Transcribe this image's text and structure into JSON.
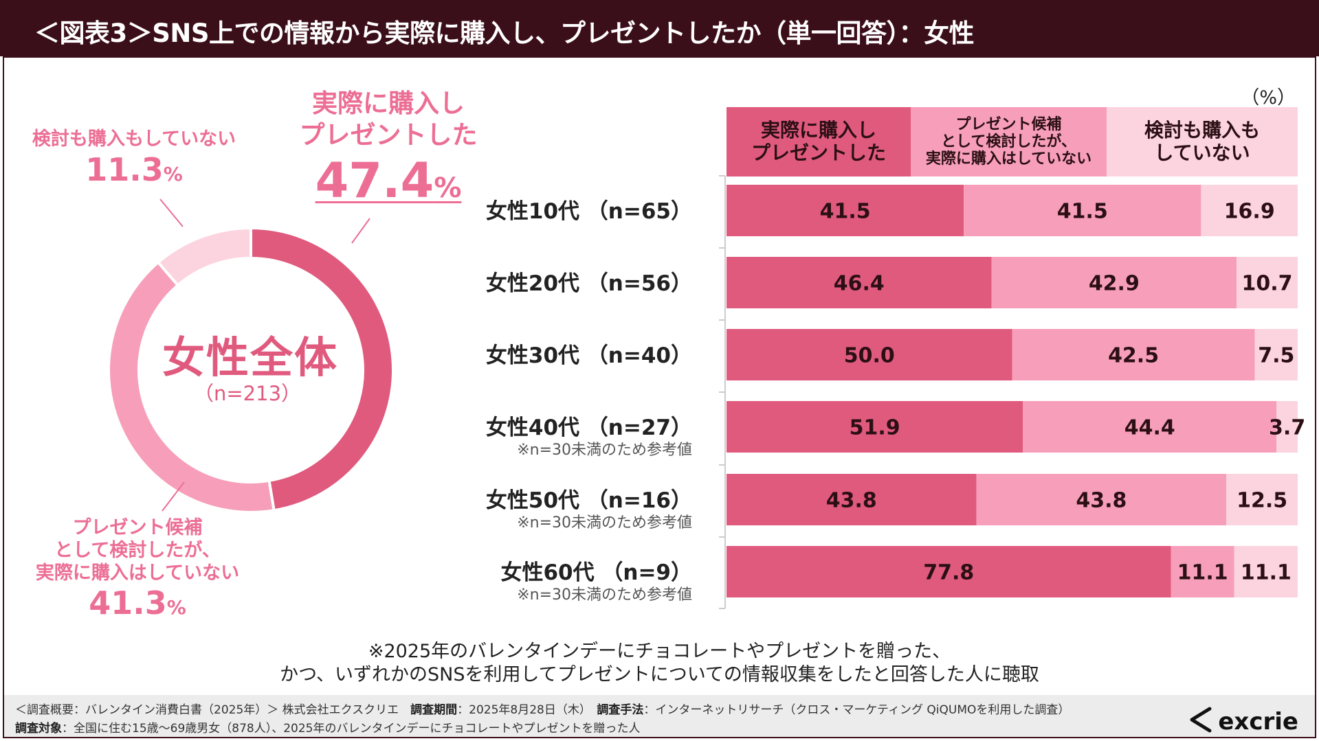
{
  "title": "＜図表3＞SNS上での情報から実際に購入し、プレゼントしたか（単一回答）：女性",
  "percent_unit": "（%）",
  "donut": {
    "center_title": "女性全体",
    "center_n": "（n=213）",
    "labels": [
      {
        "lines": [
          "実際に購入し",
          "プレゼントした"
        ],
        "value": "47.4",
        "unit": "%"
      },
      {
        "lines": [
          "検討も購入もしていない"
        ],
        "value": "11.3",
        "unit": "%"
      },
      {
        "lines": [
          "プレゼント候補",
          "として検討したが、",
          "実際に購入はしていない"
        ],
        "value": "41.3",
        "unit": "%"
      }
    ]
  },
  "legend": {
    "col1": [
      "実際に購入し",
      "プレゼントした"
    ],
    "col2": [
      "プレゼント候補",
      "として検討したが、",
      "実際に購入はしていない"
    ],
    "col3": [
      "検討も購入も",
      "していない"
    ]
  },
  "rows": [
    {
      "label": "女性10代 （n=65）",
      "note": ""
    },
    {
      "label": "女性20代 （n=56）",
      "note": ""
    },
    {
      "label": "女性30代 （n=40）",
      "note": ""
    },
    {
      "label": "女性40代 （n=27）",
      "note": "※n=30未満のため参考値"
    },
    {
      "label": "女性50代 （n=16）",
      "note": "※n=30未満のため参考値"
    },
    {
      "label": "女性60代 （n=9）",
      "note": "※n=30未満のため参考値"
    }
  ],
  "footnote": [
    "※2025年のバレンタインデーにチョコレートやプレゼントを贈った、",
    "かつ、いずれかのSNSを利用してプレゼントについての情報収集をしたと回答した人に聴取"
  ],
  "survey": {
    "line1_a": "＜調査概要：バレンタイン消費白書（2025年）＞ 株式会社エクスクリエ　",
    "period_label": "調査期間",
    "period_value": "：2025年8月28日（木）　",
    "method_label": "調査手法",
    "method_value": "：インターネットリサーチ（クロス・マーケティング QiQUMOを利用した調査）",
    "target_label": "調査対象",
    "target_value": "：全国に住む15歳～69歳男女（878人）、2025年のバレンタインデーにチョコレートやプレゼントを贈った人"
  },
  "logo_text": "excrie",
  "colors": {
    "purchased": "#e05a7e",
    "considered": "#f79fba",
    "none": "#fcd4e0",
    "title_bg": "#3b0f1a"
  },
  "chart_data": [
    {
      "type": "pie",
      "title": "女性全体（n=213）",
      "categories": [
        "実際に購入しプレゼントした",
        "プレゼント候補として検討したが、実際に購入はしていない",
        "検討も購入もしていない"
      ],
      "values": [
        47.4,
        41.3,
        11.3
      ]
    },
    {
      "type": "bar",
      "orientation": "horizontal",
      "stacked": true,
      "xlim": [
        0,
        100
      ],
      "categories": [
        "女性10代（n=65）",
        "女性20代（n=56）",
        "女性30代（n=40）",
        "女性40代（n=27）",
        "女性50代（n=16）",
        "女性60代（n=9）"
      ],
      "series": [
        {
          "name": "実際に購入しプレゼントした",
          "values": [
            41.5,
            46.4,
            50.0,
            51.9,
            43.8,
            77.8
          ],
          "labels": [
            "41.5",
            "46.4",
            "50.0",
            "51.9",
            "43.8",
            "77.8"
          ]
        },
        {
          "name": "プレゼント候補として検討したが、実際に購入はしていない",
          "values": [
            41.5,
            42.9,
            42.5,
            44.4,
            43.8,
            11.1
          ],
          "labels": [
            "41.5",
            "42.9",
            "42.5",
            "44.4",
            "43.8",
            "11.1"
          ]
        },
        {
          "name": "検討も購入もしていない",
          "values": [
            16.9,
            10.7,
            7.5,
            3.7,
            12.5,
            11.1
          ],
          "labels": [
            "16.9",
            "10.7",
            "7.5",
            "3.7",
            "12.5",
            "11.1"
          ]
        }
      ]
    }
  ]
}
